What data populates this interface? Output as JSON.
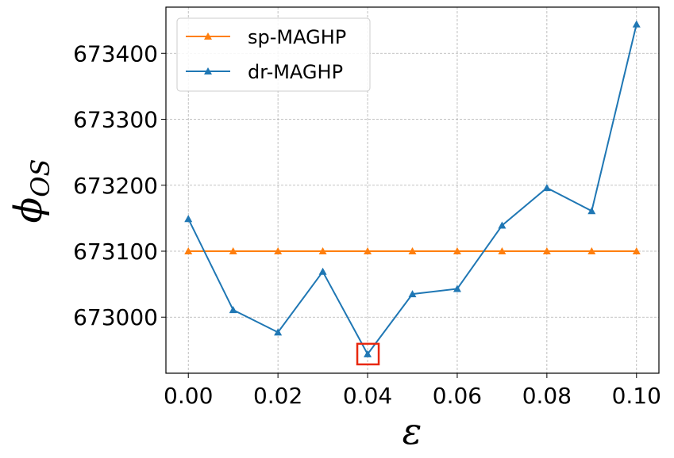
{
  "chart_data": {
    "type": "line",
    "xlabel": "ε",
    "ylabel": "ϕ",
    "ylabel_subscript": "OS",
    "x": [
      0.0,
      0.01,
      0.02,
      0.03,
      0.04,
      0.05,
      0.06,
      0.07,
      0.08,
      0.09,
      0.1
    ],
    "xlim": [
      -0.005,
      0.105
    ],
    "ylim": [
      672915,
      673470
    ],
    "xticks": [
      0.0,
      0.02,
      0.04,
      0.06,
      0.08,
      0.1
    ],
    "xtick_labels": [
      "0.00",
      "0.02",
      "0.04",
      "0.06",
      "0.08",
      "0.10"
    ],
    "yticks": [
      673000,
      673100,
      673200,
      673300,
      673400
    ],
    "ytick_labels": [
      "673000",
      "673100",
      "673200",
      "673300",
      "673400"
    ],
    "grid": true,
    "legend_position": "upper-left",
    "series": [
      {
        "name": "sp-MAGHP",
        "color": "#ff7f0e",
        "marker": "triangle-up",
        "values": [
          673100,
          673100,
          673100,
          673100,
          673100,
          673100,
          673100,
          673100,
          673100,
          673100,
          673100
        ]
      },
      {
        "name": "dr-MAGHP",
        "color": "#1f77b4",
        "marker": "triangle-up",
        "values": [
          673149,
          673011,
          672977,
          673069,
          672944,
          673035,
          673043,
          673139,
          673196,
          673161,
          673444
        ]
      }
    ],
    "highlight": {
      "x": 0.04,
      "series": "dr-MAGHP",
      "color": "#e8280e"
    }
  }
}
